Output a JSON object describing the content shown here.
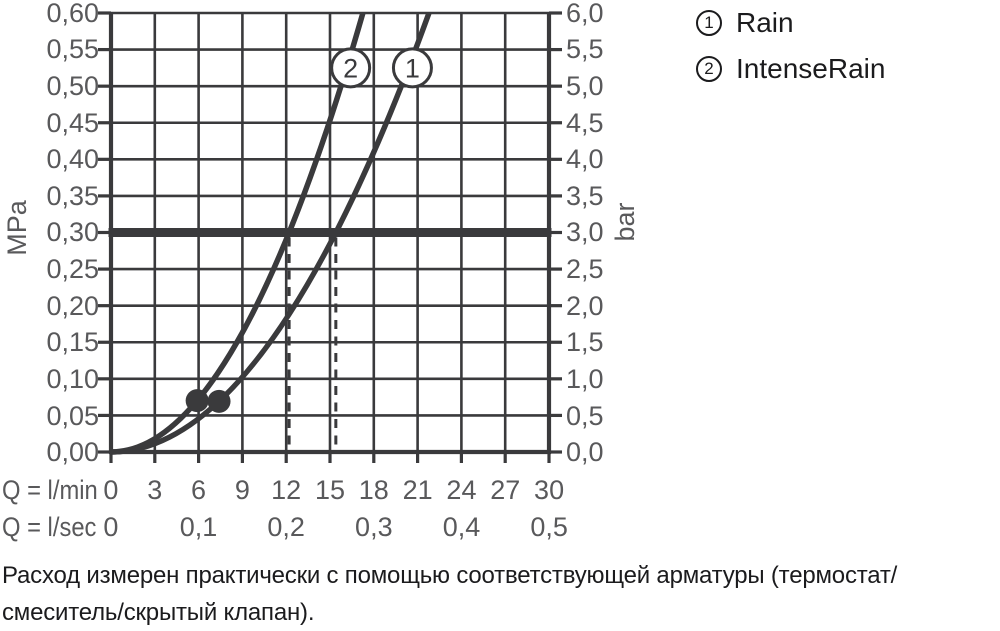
{
  "colors": {
    "line": "#3a3a3c",
    "tick_text": "#59595b",
    "text": "#1b1b1d",
    "background": "#ffffff"
  },
  "axes": {
    "y_left_unit": "MPa",
    "y_right_unit": "bar",
    "y_left_ticks": [
      "0,60",
      "0,55",
      "0,50",
      "0,45",
      "0,40",
      "0,35",
      "0,30",
      "0,25",
      "0,20",
      "0,15",
      "0,10",
      "0,05",
      "0,00"
    ],
    "y_right_ticks": [
      "6,0",
      "5,5",
      "5,0",
      "4,5",
      "4,0",
      "3,5",
      "3,0",
      "2,5",
      "2,0",
      "1,5",
      "1,0",
      "0,5",
      "0,0"
    ],
    "x_label_lmin": "Q = l/min",
    "x_label_lsec": "Q = l/sec",
    "x_ticks_lmin": [
      "0",
      "3",
      "6",
      "9",
      "12",
      "15",
      "18",
      "21",
      "24",
      "27",
      "30"
    ],
    "x_ticks_lsec": [
      "0",
      "0,1",
      "0,2",
      "0,3",
      "0,4",
      "0,5"
    ]
  },
  "legend": {
    "items": [
      {
        "num": "1",
        "label": "Rain"
      },
      {
        "num": "2",
        "label": "IntenseRain"
      }
    ]
  },
  "caption": {
    "line1": "Расход измерен практически с помощью соответствующей арматуры (термостат/",
    "line2": "смеситель/скрытый клапан)."
  },
  "chart_data": {
    "type": "line",
    "x_axis": {
      "label": "Q = l/min",
      "secondary_label": "Q = l/sec",
      "range_lmin": [
        0,
        30
      ],
      "ticks_lmin": [
        0,
        3,
        6,
        9,
        12,
        15,
        18,
        21,
        24,
        27,
        30
      ],
      "ticks_lsec": [
        0,
        0.1,
        0.2,
        0.3,
        0.4,
        0.5
      ]
    },
    "y_axis_left": {
      "label": "MPa",
      "range": [
        0,
        0.6
      ],
      "tick_step": 0.05
    },
    "y_axis_right": {
      "label": "bar",
      "range": [
        0,
        6
      ],
      "tick_step": 0.5
    },
    "grid": true,
    "legend_position": "top-right",
    "reference_line": {
      "pressure_mpa": 0.3,
      "pressure_bar": 3,
      "style": "thick-horizontal"
    },
    "dashed_vertical_guides_lmin": [
      12.2,
      15.4
    ],
    "series": [
      {
        "id": "1",
        "name": "Rain",
        "flow_at_3bar_lmin": 15.4,
        "dot_marker": {
          "pressure_mpa": 0.07,
          "flow_lmin": 7.4
        },
        "points_pressure_mpa_flow_lmin": [
          [
            0,
            0
          ],
          [
            0.05,
            6.3
          ],
          [
            0.1,
            8.9
          ],
          [
            0.15,
            10.9
          ],
          [
            0.2,
            12.6
          ],
          [
            0.25,
            14.1
          ],
          [
            0.3,
            15.4
          ],
          [
            0.35,
            16.6
          ],
          [
            0.4,
            17.8
          ],
          [
            0.45,
            18.9
          ],
          [
            0.5,
            19.9
          ],
          [
            0.55,
            20.9
          ],
          [
            0.6,
            21.8
          ]
        ]
      },
      {
        "id": "2",
        "name": "IntenseRain",
        "flow_at_3bar_lmin": 12.2,
        "dot_marker": {
          "pressure_mpa": 0.07,
          "flow_lmin": 5.9
        },
        "points_pressure_mpa_flow_lmin": [
          [
            0,
            0
          ],
          [
            0.05,
            5.0
          ],
          [
            0.1,
            7.0
          ],
          [
            0.15,
            8.6
          ],
          [
            0.2,
            10.0
          ],
          [
            0.25,
            11.1
          ],
          [
            0.3,
            12.2
          ],
          [
            0.35,
            13.2
          ],
          [
            0.4,
            14.1
          ],
          [
            0.45,
            14.9
          ],
          [
            0.5,
            15.7
          ],
          [
            0.55,
            16.5
          ],
          [
            0.6,
            17.3
          ]
        ]
      }
    ]
  }
}
